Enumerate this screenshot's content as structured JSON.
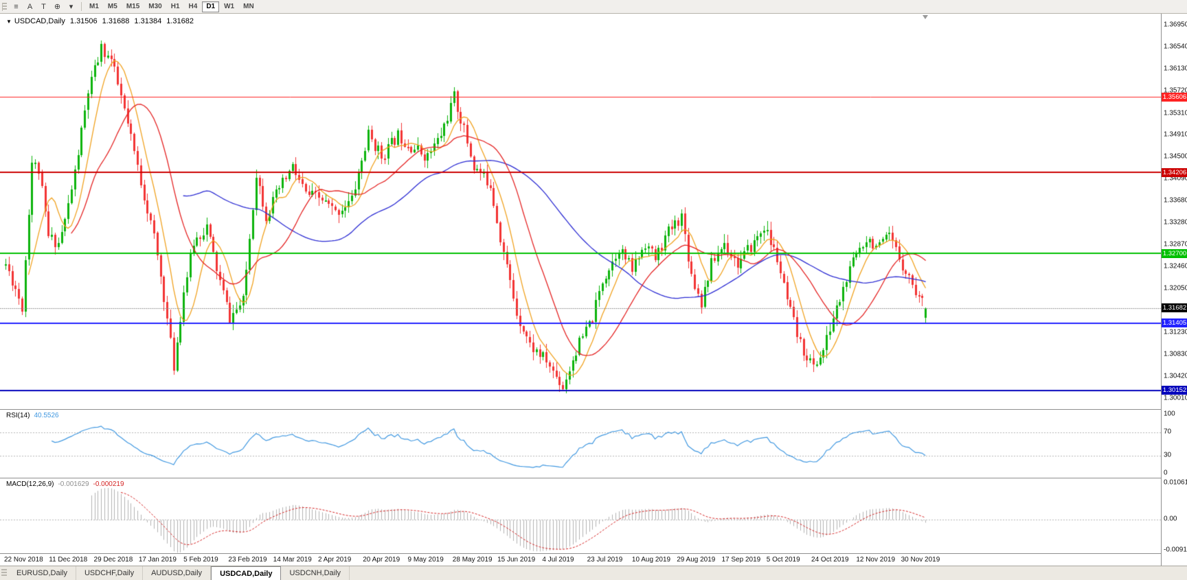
{
  "toolbar": {
    "tools": [
      {
        "name": "chart-list",
        "glyph": "≡"
      },
      {
        "name": "text-annotation",
        "glyph": "A"
      },
      {
        "name": "type-tool",
        "glyph": "T"
      },
      {
        "name": "crosshair-tool",
        "glyph": "⊕"
      },
      {
        "name": "tools-dropdown",
        "glyph": "▾"
      }
    ],
    "timeframes": [
      {
        "label": "M1"
      },
      {
        "label": "M5"
      },
      {
        "label": "M15"
      },
      {
        "label": "M30"
      },
      {
        "label": "H1"
      },
      {
        "label": "H4"
      },
      {
        "label": "D1",
        "active": true
      },
      {
        "label": "W1"
      },
      {
        "label": "MN"
      }
    ]
  },
  "chart": {
    "title": {
      "dropdown_arrow": "▼",
      "symbol": "USDCAD,Daily",
      "open": "1.31506",
      "high": "1.31688",
      "low": "1.31384",
      "close": "1.31682"
    },
    "y_ticks": [
      "1.36950",
      "1.36540",
      "1.36130",
      "1.35720",
      "1.35310",
      "1.34910",
      "1.34500",
      "1.34090",
      "1.33680",
      "1.33280",
      "1.32870",
      "1.32460",
      "1.32050",
      "1.31640",
      "1.31230",
      "1.30830",
      "1.30420",
      "1.30010"
    ],
    "x_labels": [
      "22 Nov 2018",
      "11 Dec 2018",
      "29 Dec 2018",
      "17 Jan 2019",
      "5 Feb 2019",
      "23 Feb 2019",
      "14 Mar 2019",
      "2 Apr 2019",
      "20 Apr 2019",
      "9 May 2019",
      "28 May 2019",
      "15 Jun 2019",
      "4 Jul 2019",
      "23 Jul 2019",
      "10 Aug 2019",
      "29 Aug 2019",
      "17 Sep 2019",
      "5 Oct 2019",
      "24 Oct 2019",
      "12 Nov 2019",
      "30 Nov 2019"
    ],
    "levels": [
      {
        "price": "1.35606",
        "value": 1.35606,
        "color": "#ff2222",
        "width": 1
      },
      {
        "price": "1.34206",
        "value": 1.34206,
        "color": "#cc0000",
        "width": 2
      },
      {
        "price": "1.32700",
        "value": 1.327,
        "color": "#00c000",
        "width": 2
      },
      {
        "price": "1.31405",
        "value": 1.31405,
        "color": "#2222ff",
        "width": 2
      },
      {
        "price": "1.30152",
        "value": 1.30152,
        "color": "#0000bb",
        "width": 2
      }
    ],
    "bid": {
      "price": "1.31682",
      "value": 1.31682,
      "label_bg": "#000000"
    }
  },
  "rsi": {
    "label": "RSI(14)",
    "value": "40.5526",
    "ticks": [
      "100",
      "70",
      "30",
      "0"
    ]
  },
  "macd": {
    "label": "MACD(12,26,9)",
    "main_value": "-0.001629",
    "signal_value": "-0.000219",
    "ticks": [
      "0.010615",
      "0.00",
      "-0.009181"
    ]
  },
  "tabs": [
    {
      "label": "EURUSD,Daily"
    },
    {
      "label": "USDCHF,Daily"
    },
    {
      "label": "AUDUSD,Daily"
    },
    {
      "label": "USDCAD,Daily",
      "active": true
    },
    {
      "label": "USDCNH,Daily"
    }
  ],
  "colors": {
    "candle_up": "#0bb30b",
    "candle_down": "#f23333",
    "bid_line": "#8a8a8a",
    "background": "#ffffff",
    "toolbar_bg": "#f1efec",
    "panel_border": "#8e8e8e"
  },
  "chart_data": {
    "type": "candlestick",
    "title": "USDCAD Daily",
    "y_range": [
      1.3001,
      1.3695
    ],
    "candle_count": 280,
    "seed": 11,
    "volatility": 0.0024,
    "wick": 0.0014,
    "clamp_high": 1.3678,
    "clamp_low": 1.301,
    "price_path": [
      [
        0,
        1.325
      ],
      [
        3,
        1.3205
      ],
      [
        5,
        1.317
      ],
      [
        8,
        1.344
      ],
      [
        10,
        1.3425
      ],
      [
        13,
        1.33
      ],
      [
        16,
        1.329
      ],
      [
        18,
        1.333
      ],
      [
        21,
        1.342
      ],
      [
        25,
        1.357
      ],
      [
        29,
        1.365
      ],
      [
        32,
        1.363
      ],
      [
        35,
        1.356
      ],
      [
        40,
        1.343
      ],
      [
        45,
        1.33
      ],
      [
        48,
        1.319
      ],
      [
        51,
        1.306
      ],
      [
        54,
        1.32
      ],
      [
        57,
        1.329
      ],
      [
        61,
        1.332
      ],
      [
        64,
        1.324
      ],
      [
        68,
        1.315
      ],
      [
        72,
        1.318
      ],
      [
        76,
        1.342
      ],
      [
        79,
        1.334
      ],
      [
        83,
        1.339
      ],
      [
        87,
        1.343
      ],
      [
        91,
        1.338
      ],
      [
        96,
        1.337
      ],
      [
        100,
        1.3345
      ],
      [
        105,
        1.337
      ],
      [
        110,
        1.349
      ],
      [
        114,
        1.345
      ],
      [
        119,
        1.349
      ],
      [
        123,
        1.347
      ],
      [
        128,
        1.345
      ],
      [
        132,
        1.349
      ],
      [
        136,
        1.356
      ],
      [
        139,
        1.35
      ],
      [
        142,
        1.343
      ],
      [
        147,
        1.34
      ],
      [
        150,
        1.33
      ],
      [
        155,
        1.316
      ],
      [
        159,
        1.31
      ],
      [
        164,
        1.307
      ],
      [
        169,
        1.3022
      ],
      [
        173,
        1.309
      ],
      [
        178,
        1.315
      ],
      [
        181,
        1.322
      ],
      [
        186,
        1.328
      ],
      [
        190,
        1.324
      ],
      [
        194,
        1.329
      ],
      [
        197,
        1.326
      ],
      [
        201,
        1.331
      ],
      [
        205,
        1.334
      ],
      [
        208,
        1.323
      ],
      [
        211,
        1.318
      ],
      [
        214,
        1.325
      ],
      [
        218,
        1.329
      ],
      [
        222,
        1.325
      ],
      [
        227,
        1.329
      ],
      [
        230,
        1.332
      ],
      [
        234,
        1.326
      ],
      [
        237,
        1.318
      ],
      [
        241,
        1.31
      ],
      [
        245,
        1.3058
      ],
      [
        248,
        1.309
      ],
      [
        251,
        1.315
      ],
      [
        255,
        1.322
      ],
      [
        258,
        1.327
      ],
      [
        261,
        1.33
      ],
      [
        265,
        1.328
      ],
      [
        268,
        1.33
      ],
      [
        272,
        1.325
      ],
      [
        276,
        1.32
      ],
      [
        279,
        1.3168
      ]
    ],
    "last_candle": {
      "open": 1.31506,
      "high": 1.31688,
      "low": 1.31384,
      "close": 1.31682
    },
    "moving_averages": [
      {
        "period": 8,
        "color": "#f0a11e"
      },
      {
        "period": 55,
        "color": "#2a2ad2"
      },
      {
        "period": 21,
        "color": "#e42222"
      }
    ],
    "indicators": {
      "rsi": {
        "period": 14,
        "levels": [
          70,
          30
        ],
        "range": [
          0,
          100
        ],
        "color": "#3f97e0",
        "current": 40.5526
      },
      "macd": {
        "fast": 12,
        "slow": 26,
        "signal": 9,
        "range": [
          -0.009181,
          0.010615
        ],
        "histogram_color": "#b0b0b0",
        "signal_color": "#d42424",
        "current_main": -0.001629,
        "current_signal": -0.000219
      }
    }
  }
}
